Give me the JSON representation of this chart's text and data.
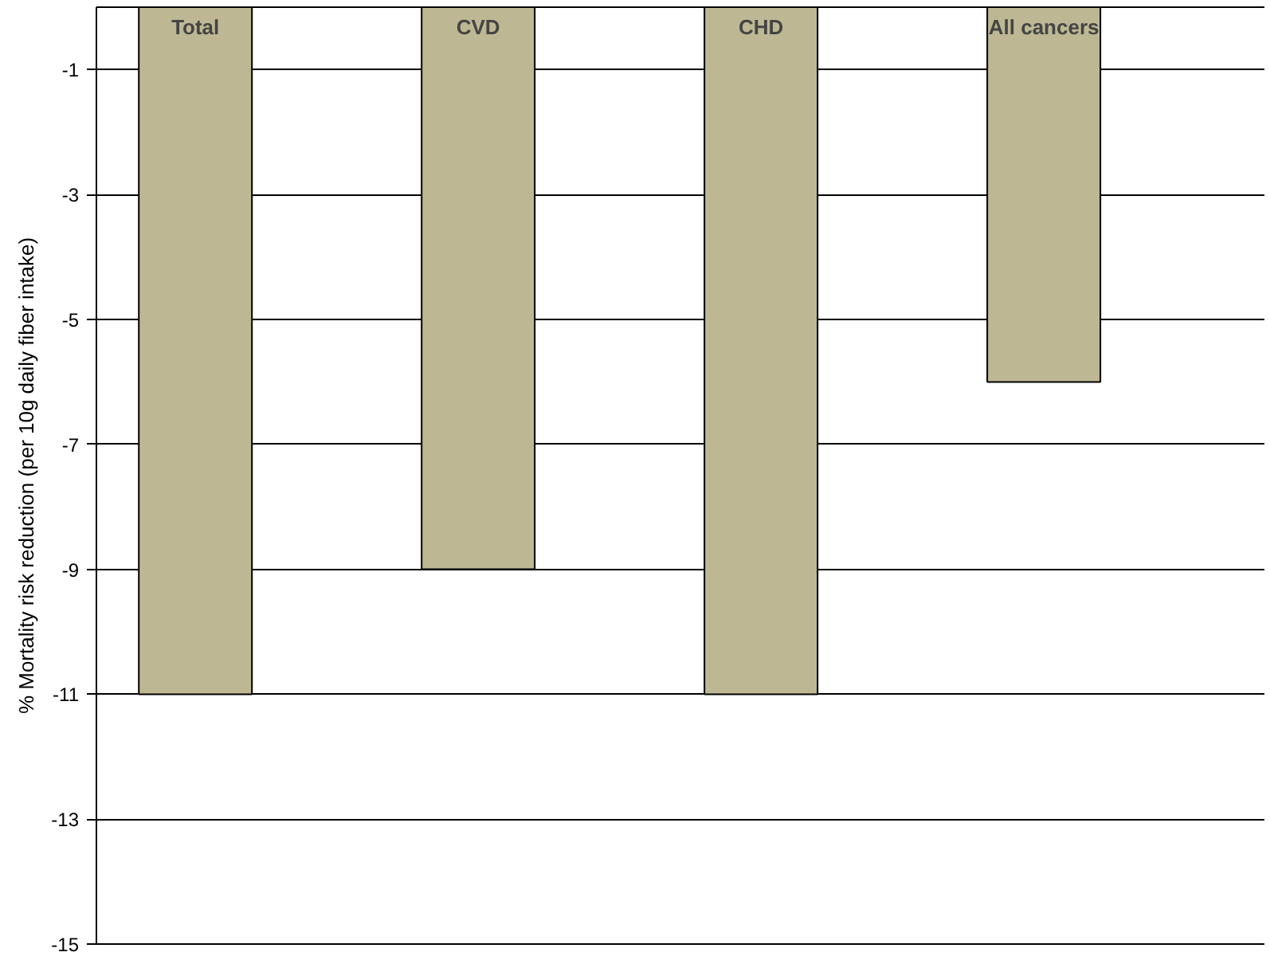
{
  "chart_data": {
    "type": "bar",
    "ylabel": "% Mortality risk reduction (per 10g daily fiber intake)",
    "categories": [
      "Total",
      "CVD",
      "CHD",
      "All cancers"
    ],
    "values": [
      -11,
      -9,
      -11,
      -6
    ],
    "color": "#bdb893",
    "ylim": [
      -15,
      0
    ],
    "yticks": [
      -1,
      -3,
      -5,
      -7,
      -9,
      -11,
      -13,
      -15
    ],
    "grid": "y"
  }
}
